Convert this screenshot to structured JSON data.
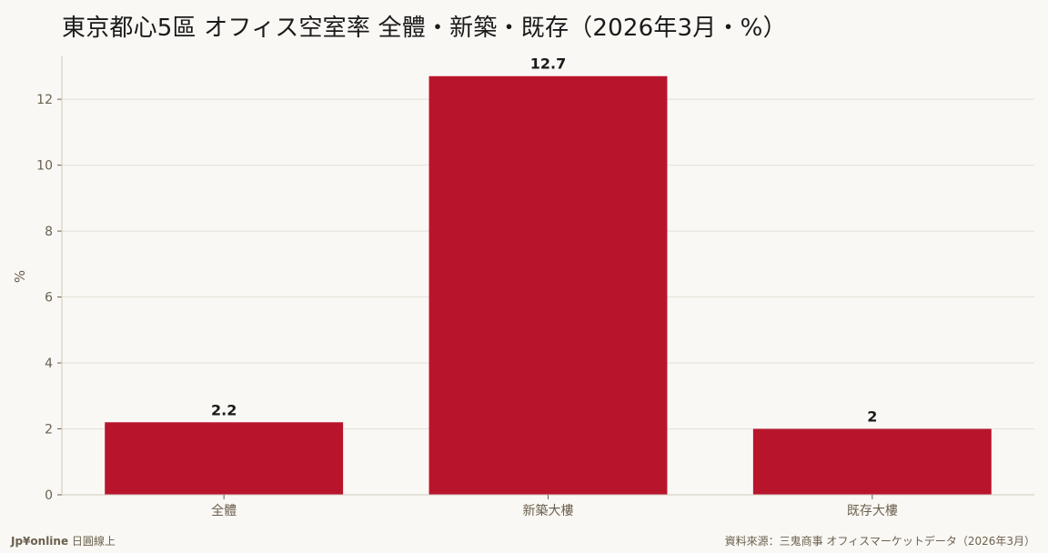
{
  "title": "東京都心5區 オフィス空室率 全體・新築・既存（2026年3月・%）",
  "footer": {
    "brand": "Jp¥online",
    "brand_suffix": " 日圓線上",
    "source": "資料來源：三鬼商事 オフィスマーケットデータ（2026年3月）"
  },
  "colors": {
    "bar": "#b8152c",
    "background": "#faf8f4",
    "grid": "#e4e0d8",
    "axis_text": "#6b604f"
  },
  "chart_data": {
    "type": "bar",
    "categories": [
      "全體",
      "新築大樓",
      "既存大樓"
    ],
    "values": [
      2.2,
      12.7,
      2
    ],
    "value_labels": [
      "2.2",
      "12.7",
      "2"
    ],
    "ylabel": "%",
    "ylim": [
      0,
      13.3
    ],
    "yticks": [
      0,
      2,
      4,
      6,
      8,
      10,
      12
    ],
    "grid": true,
    "legend": "none"
  }
}
